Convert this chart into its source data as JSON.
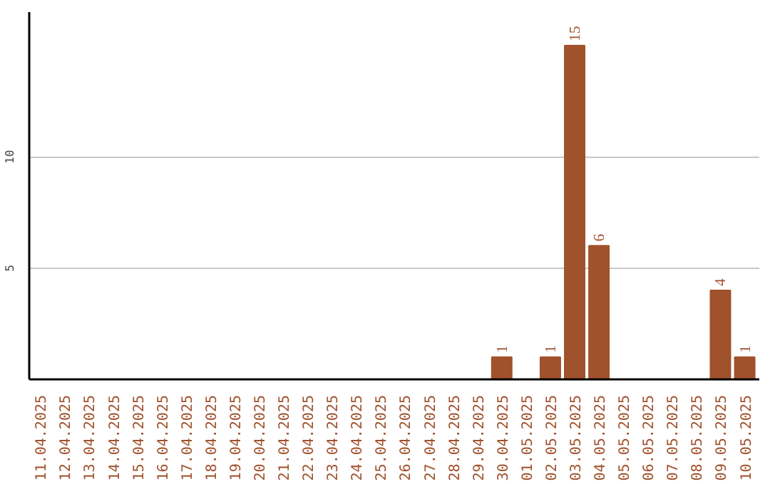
{
  "chart_data": {
    "type": "bar",
    "categories": [
      "11.04.2025",
      "12.04.2025",
      "13.04.2025",
      "14.04.2025",
      "15.04.2025",
      "16.04.2025",
      "17.04.2025",
      "18.04.2025",
      "19.04.2025",
      "20.04.2025",
      "21.04.2025",
      "22.04.2025",
      "23.04.2025",
      "24.04.2025",
      "25.04.2025",
      "26.04.2025",
      "27.04.2025",
      "28.04.2025",
      "29.04.2025",
      "30.04.2025",
      "01.05.2025",
      "02.05.2025",
      "03.05.2025",
      "04.05.2025",
      "05.05.2025",
      "06.05.2025",
      "07.05.2025",
      "08.05.2025",
      "09.05.2025",
      "10.05.2025"
    ],
    "values": [
      0,
      0,
      0,
      0,
      0,
      0,
      0,
      0,
      0,
      0,
      0,
      0,
      0,
      0,
      0,
      0,
      0,
      0,
      0,
      1,
      0,
      1,
      15,
      6,
      0,
      0,
      0,
      0,
      4,
      1
    ],
    "value_labels": [
      null,
      null,
      null,
      null,
      null,
      null,
      null,
      null,
      null,
      null,
      null,
      null,
      null,
      null,
      null,
      null,
      null,
      null,
      null,
      "1",
      null,
      "1",
      "15",
      "6",
      null,
      null,
      null,
      null,
      "4",
      "1"
    ],
    "color": "#a0522d",
    "ylim": [
      0,
      16.5
    ],
    "yticks": [
      5,
      10
    ],
    "grid": "y"
  }
}
